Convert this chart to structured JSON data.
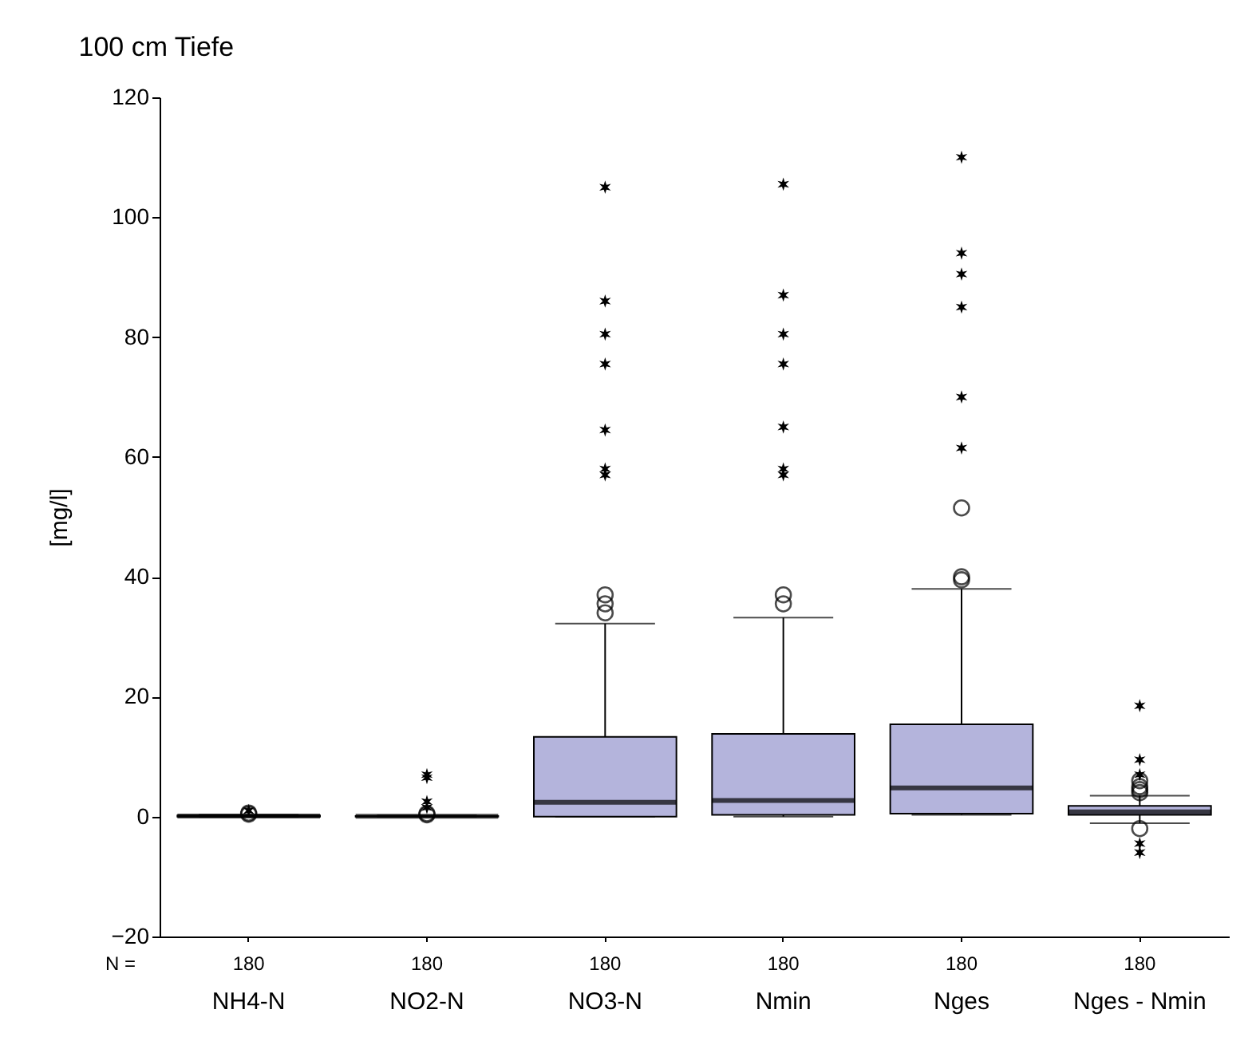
{
  "chart_data": {
    "type": "box",
    "title": "100 cm Tiefe",
    "ylabel": "[mg/l]",
    "categories": [
      "NH4-N",
      "NO2-N",
      "NO3-N",
      "Nmin",
      "Nges",
      "Nges - Nmin"
    ],
    "ylim": [
      -20,
      120
    ],
    "yticks": [
      -20,
      0,
      20,
      40,
      60,
      80,
      100,
      120
    ],
    "grid": false,
    "series": [
      {
        "color": "#b4b4dc",
        "boxes": [
          {
            "low": 0,
            "q1": 0,
            "median": 0.1,
            "q3": 0.2,
            "high": 0.3,
            "outliers": [
              0.4,
              0.6
            ]
          },
          {
            "low": 0,
            "q1": 0,
            "median": 0.05,
            "q3": 0.1,
            "high": 0.2,
            "outliers": [
              0.3,
              0.5
            ]
          },
          {
            "low": 0,
            "q1": 0,
            "median": 2.4,
            "q3": 13.3,
            "high": 32.2,
            "outliers": [
              34,
              35.5,
              37
            ]
          },
          {
            "low": 0,
            "q1": 0.3,
            "median": 2.7,
            "q3": 13.8,
            "high": 33.2,
            "outliers": [
              35.5,
              37
            ]
          },
          {
            "low": 0.3,
            "q1": 0.5,
            "median": 4.8,
            "q3": 15.4,
            "high": 38,
            "outliers": [
              39.5,
              40,
              51.5
            ]
          },
          {
            "low": -1.1,
            "q1": 0.3,
            "median": 0.8,
            "q3": 1.8,
            "high": 3.5,
            "outliers": [
              -2,
              4,
              4.5,
              5,
              6
            ]
          }
        ]
      },
      {
        "type": "scatter",
        "marker": "cross",
        "color": "#000000",
        "x": [
          "NH4-N",
          "NO2-N",
          "NO2-N",
          "NO2-N",
          "NO2-N",
          "NO3-N",
          "NO3-N",
          "NO3-N",
          "NO3-N",
          "NO3-N",
          "NO3-N",
          "NO3-N",
          "Nmin",
          "Nmin",
          "Nmin",
          "Nmin",
          "Nmin",
          "Nmin",
          "Nmin",
          "Nges",
          "Nges",
          "Nges",
          "Nges",
          "Nges",
          "Nges",
          "Nges - Nmin",
          "Nges - Nmin",
          "Nges - Nmin",
          "Nges - Nmin",
          "Nges - Nmin"
        ],
        "values": [
          1,
          1.5,
          2.5,
          6.5,
          7,
          105,
          86,
          80.5,
          75.5,
          64.5,
          57,
          58,
          105.5,
          87,
          80.5,
          75.5,
          65,
          57,
          58,
          110,
          94,
          90.5,
          85,
          70,
          61.5,
          18.5,
          9.5,
          7,
          -4.5,
          -6
        ]
      }
    ],
    "annotations": [
      "N =",
      "180",
      "180",
      "180",
      "180",
      "180",
      "180"
    ]
  }
}
